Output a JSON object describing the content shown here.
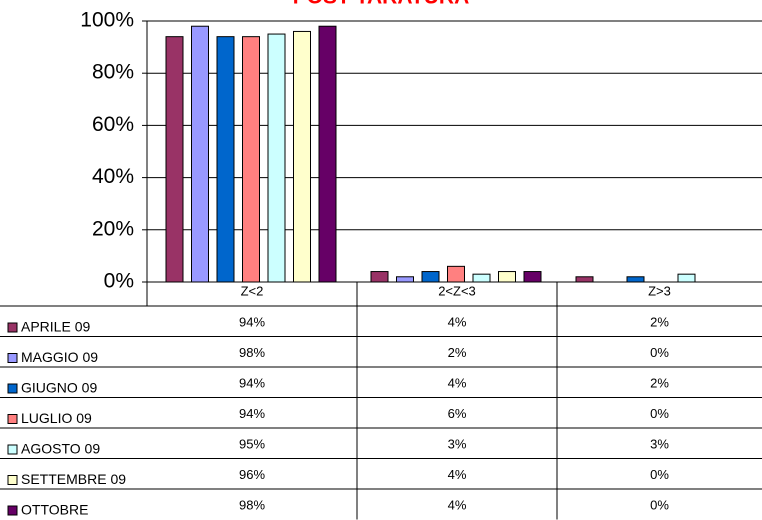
{
  "chart_data": {
    "type": "bar",
    "title": "POST TARATURA",
    "categories": [
      "Z<2",
      "2<Z<3",
      "Z>3"
    ],
    "ylim": [
      0,
      100
    ],
    "yticks": [
      {
        "value": 0,
        "label": "0%"
      },
      {
        "value": 20,
        "label": "20%"
      },
      {
        "value": 40,
        "label": "40%"
      },
      {
        "value": 60,
        "label": "60%"
      },
      {
        "value": 80,
        "label": "80%"
      },
      {
        "value": 100,
        "label": "100%"
      }
    ],
    "grid": true,
    "series": [
      {
        "name": "APRILE 09",
        "color": "#993366",
        "values": [
          94,
          4,
          2
        ],
        "value_labels": [
          "94%",
          "4%",
          "2%"
        ]
      },
      {
        "name": "MAGGIO 09",
        "color": "#9999ff",
        "values": [
          98,
          2,
          0
        ],
        "value_labels": [
          "98%",
          "2%",
          "0%"
        ]
      },
      {
        "name": "GIUGNO 09",
        "color": "#0066cc",
        "values": [
          94,
          4,
          2
        ],
        "value_labels": [
          "94%",
          "4%",
          "2%"
        ]
      },
      {
        "name": "LUGLIO 09",
        "color": "#ff8080",
        "values": [
          94,
          6,
          0
        ],
        "value_labels": [
          "94%",
          "6%",
          "0%"
        ]
      },
      {
        "name": "AGOSTO 09",
        "color": "#ccffff",
        "values": [
          95,
          3,
          3
        ],
        "value_labels": [
          "95%",
          "3%",
          "3%"
        ]
      },
      {
        "name": "SETTEMBRE 09",
        "color": "#ffffcc",
        "values": [
          96,
          4,
          0
        ],
        "value_labels": [
          "96%",
          "4%",
          "0%"
        ]
      },
      {
        "name": "OTTOBRE",
        "color": "#660066",
        "values": [
          98,
          4,
          0
        ],
        "value_labels": [
          "98%",
          "4%",
          "0%"
        ]
      }
    ]
  }
}
